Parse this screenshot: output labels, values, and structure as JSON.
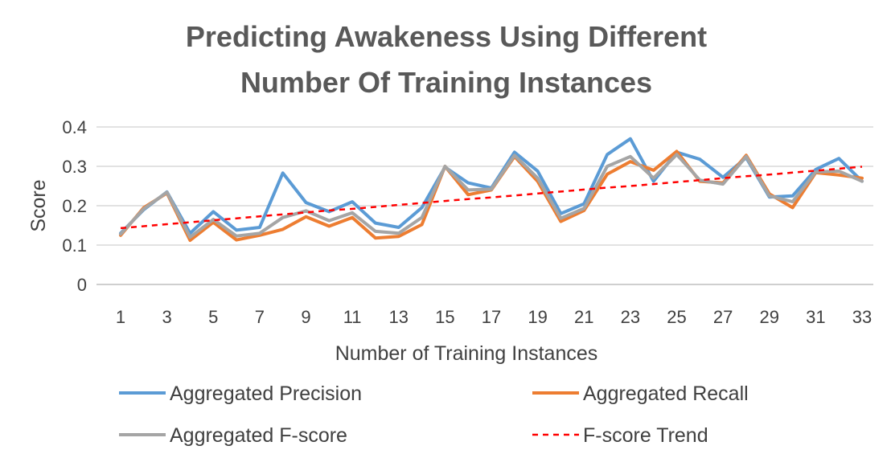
{
  "chart_data": {
    "type": "line",
    "title_lines": [
      "Predicting Awakeness Using Different",
      "Number Of Training Instances"
    ],
    "xlabel": "Number of Training Instances",
    "ylabel": "Score",
    "x": [
      1,
      2,
      3,
      4,
      5,
      6,
      7,
      8,
      9,
      10,
      11,
      12,
      13,
      14,
      15,
      16,
      17,
      18,
      19,
      20,
      21,
      22,
      23,
      24,
      25,
      26,
      27,
      28,
      29,
      30,
      31,
      32,
      33
    ],
    "x_tick_labels": [
      "1",
      "3",
      "5",
      "7",
      "9",
      "11",
      "13",
      "15",
      "17",
      "19",
      "21",
      "23",
      "25",
      "27",
      "29",
      "31",
      "33"
    ],
    "y_ticks": [
      "0",
      "0.1",
      "0.2",
      "0.3",
      "0.4"
    ],
    "ylim": [
      0,
      0.4
    ],
    "grid": true,
    "legend_position": "bottom",
    "series": [
      {
        "name": "Aggregated Precision",
        "color": "#5b9bd5",
        "style": "solid",
        "values": [
          0.13,
          0.19,
          0.235,
          0.13,
          0.185,
          0.138,
          0.145,
          0.283,
          0.208,
          0.185,
          0.21,
          0.156,
          0.145,
          0.195,
          0.298,
          0.258,
          0.245,
          0.336,
          0.288,
          0.18,
          0.205,
          0.33,
          0.37,
          0.262,
          0.336,
          0.318,
          0.272,
          0.322,
          0.222,
          0.225,
          0.292,
          0.32,
          0.262
        ]
      },
      {
        "name": "Aggregated Recall",
        "color": "#ed7d31",
        "style": "solid",
        "values": [
          0.125,
          0.195,
          0.232,
          0.112,
          0.158,
          0.113,
          0.125,
          0.14,
          0.172,
          0.148,
          0.17,
          0.118,
          0.122,
          0.152,
          0.3,
          0.228,
          0.24,
          0.325,
          0.262,
          0.16,
          0.188,
          0.28,
          0.312,
          0.29,
          0.338,
          0.262,
          0.258,
          0.328,
          0.23,
          0.195,
          0.284,
          0.278,
          0.27
        ]
      },
      {
        "name": "Aggregated F-score",
        "color": "#a5a5a5",
        "style": "solid",
        "values": [
          0.128,
          0.192,
          0.234,
          0.12,
          0.165,
          0.123,
          0.13,
          0.17,
          0.187,
          0.162,
          0.182,
          0.135,
          0.13,
          0.17,
          0.3,
          0.24,
          0.242,
          0.328,
          0.27,
          0.168,
          0.193,
          0.3,
          0.325,
          0.27,
          0.33,
          0.265,
          0.255,
          0.325,
          0.225,
          0.21,
          0.286,
          0.288,
          0.262
        ]
      },
      {
        "name": "F-score Trend",
        "color": "#ff0000",
        "style": "dashed",
        "values": [
          0.143,
          0.148,
          0.153,
          0.158,
          0.163,
          0.168,
          0.173,
          0.178,
          0.183,
          0.188,
          0.192,
          0.197,
          0.202,
          0.207,
          0.212,
          0.217,
          0.221,
          0.226,
          0.231,
          0.236,
          0.241,
          0.246,
          0.25,
          0.255,
          0.26,
          0.265,
          0.27,
          0.275,
          0.279,
          0.284,
          0.289,
          0.294,
          0.299
        ]
      }
    ]
  }
}
